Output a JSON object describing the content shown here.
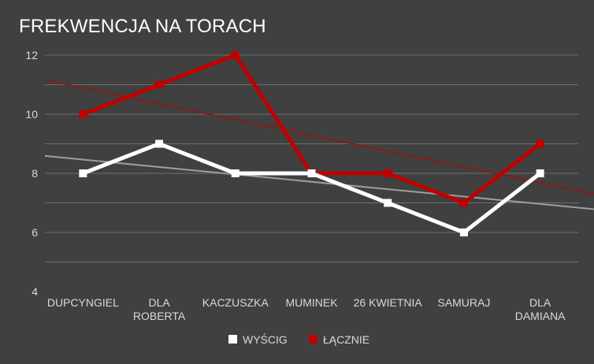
{
  "chart_data": {
    "type": "line",
    "title": "FREKWENCJA NA TORACH",
    "categories": [
      [
        "DUPCYNGIEL"
      ],
      [
        "DLA",
        "ROBERTA"
      ],
      [
        "KACZUSZKA"
      ],
      [
        "MUMINEK"
      ],
      [
        "26 KWIETNIA"
      ],
      [
        "SAMURAJ"
      ],
      [
        "DLA",
        "DAMIANA"
      ]
    ],
    "series": [
      {
        "name": "WYŚCIG",
        "color": "#ffffff",
        "values": [
          8,
          9,
          8,
          8,
          7,
          6,
          8
        ]
      },
      {
        "name": "ŁĄCZNIE",
        "color": "#c00000",
        "values": [
          10,
          11,
          12,
          8,
          8,
          7,
          9
        ]
      }
    ],
    "trendlines": [
      {
        "series": "WYŚCIG",
        "color": "#9e9e9e"
      },
      {
        "series": "ŁĄCZNIE",
        "color": "#8b1a1a"
      }
    ],
    "ylim": [
      4,
      12
    ],
    "yticks": [
      4,
      6,
      8,
      10,
      12
    ],
    "grid": true,
    "legend": "bottom"
  }
}
